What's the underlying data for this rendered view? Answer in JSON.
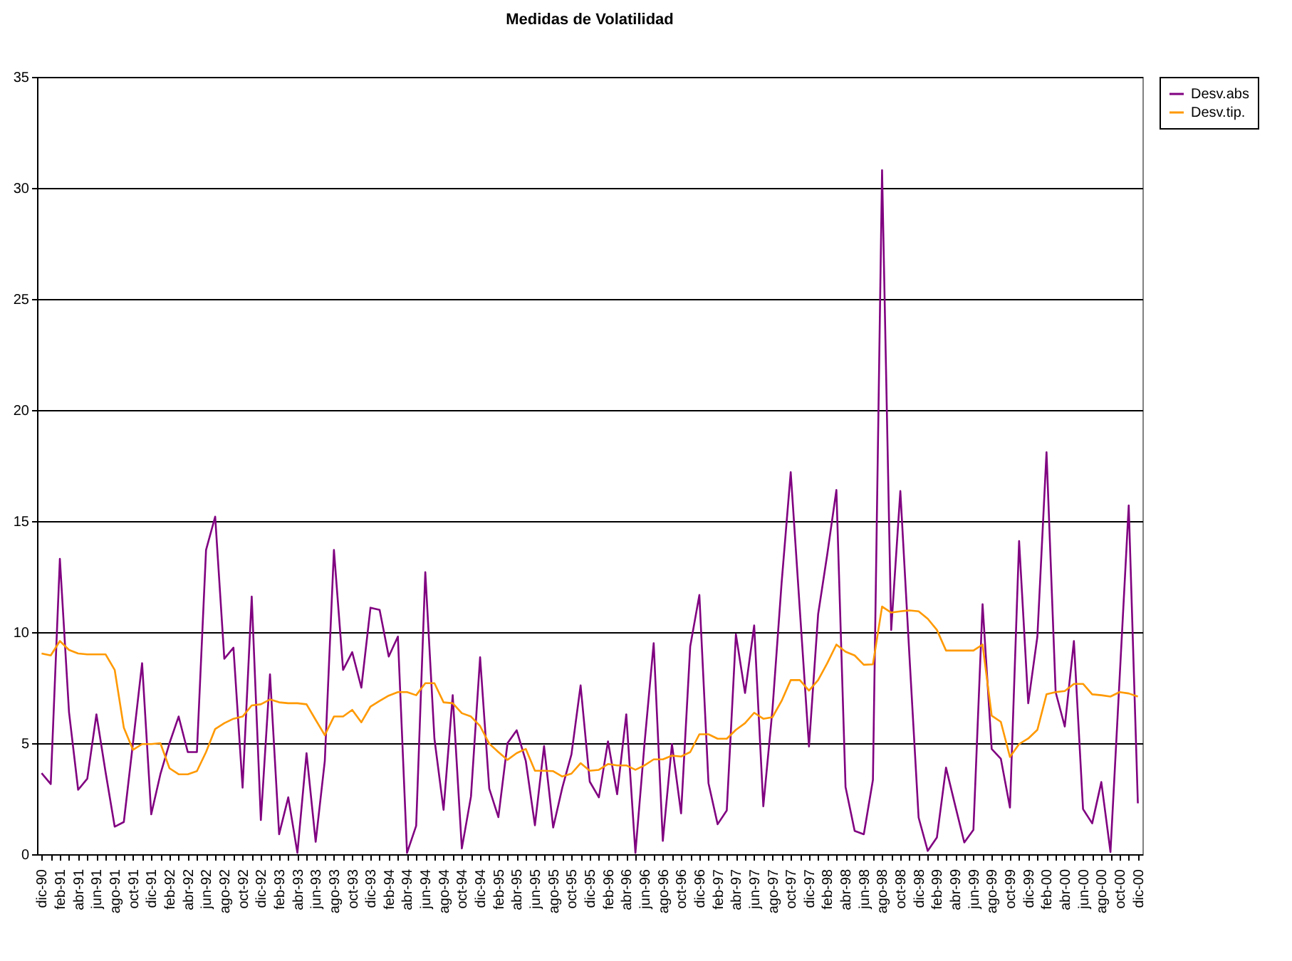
{
  "chart_data": {
    "type": "line",
    "title": "Medidas de Volatilidad",
    "categories": [
      "dic-90",
      null,
      "feb-91",
      null,
      "abr-91",
      null,
      "jun-91",
      null,
      "ago-91",
      null,
      "oct-91",
      null,
      "dic-91",
      null,
      "feb-92",
      null,
      "abr-92",
      null,
      "jun-92",
      null,
      "ago-92",
      null,
      "oct-92",
      null,
      "dic-92",
      null,
      "feb-93",
      null,
      "abr-93",
      null,
      "jun-93",
      null,
      "ago-93",
      null,
      "oct-93",
      null,
      "dic-93",
      null,
      "feb-94",
      null,
      "abr-94",
      null,
      "jun-94",
      null,
      "ago-94",
      null,
      "oct-94",
      null,
      "dic-94",
      null,
      "feb-95",
      null,
      "abr-95",
      null,
      "jun-95",
      null,
      "ago-95",
      null,
      "oct-95",
      null,
      "dic-95",
      null,
      "feb-96",
      null,
      "abr-96",
      null,
      "jun-96",
      null,
      "ago-96",
      null,
      "oct-96",
      null,
      "dic-96",
      null,
      "feb-97",
      null,
      "abr-97",
      null,
      "jun-97",
      null,
      "ago-97",
      null,
      "oct-97",
      null,
      "dic-97",
      null,
      "feb-98",
      null,
      "abr-98",
      null,
      "jun-98",
      null,
      "ago-98",
      null,
      "oct-98",
      null,
      "dic-98",
      null,
      "feb-99",
      null,
      "abr-99",
      null,
      "jun-99",
      null,
      "ago-99",
      null,
      "oct-99",
      null,
      "dic-99",
      null,
      "feb-00",
      null,
      "abr-00",
      null,
      "jun-00",
      null,
      "ago-00",
      null,
      "oct-00",
      null,
      "dic-00"
    ],
    "series": [
      {
        "name": "Desv.abs",
        "color": "#800080",
        "values": [
          3.65,
          3.16,
          13.3,
          6.4,
          2.9,
          3.4,
          6.3,
          3.7,
          1.24,
          1.45,
          5.0,
          8.6,
          1.8,
          3.6,
          5.0,
          6.2,
          4.6,
          4.6,
          13.7,
          15.2,
          8.8,
          9.3,
          3.0,
          11.6,
          1.54,
          8.1,
          0.9,
          2.56,
          0.06,
          4.55,
          0.56,
          4.2,
          13.7,
          8.3,
          9.1,
          7.5,
          11.1,
          11.0,
          8.9,
          9.8,
          0.06,
          1.28,
          12.7,
          5.2,
          2.0,
          7.16,
          0.26,
          2.6,
          8.87,
          2.95,
          1.67,
          5.0,
          5.58,
          4.2,
          1.3,
          4.87,
          1.2,
          3.0,
          4.5,
          7.6,
          3.27,
          2.56,
          5.08,
          2.7,
          6.3,
          0.06,
          5.0,
          9.5,
          0.6,
          4.96,
          1.84,
          9.36,
          11.67,
          3.2,
          1.35,
          1.97,
          9.9,
          7.26,
          10.3,
          2.16,
          6.5,
          12.2,
          17.2,
          11.0,
          4.85,
          10.8,
          13.5,
          16.4,
          3.03,
          1.05,
          0.9,
          3.35,
          30.8,
          10.1,
          16.35,
          8.9,
          1.65,
          0.15,
          0.75,
          3.9,
          2.2,
          0.53,
          1.1,
          11.26,
          4.74,
          4.3,
          2.1,
          14.1,
          6.8,
          9.8,
          18.1,
          7.3,
          5.75,
          9.6,
          2.03,
          1.39,
          3.25,
          0.1,
          7.9,
          15.7,
          2.29
        ]
      },
      {
        "name": "Desv.tip.",
        "color": "#ff9900",
        "values": [
          9.04,
          8.95,
          9.6,
          9.2,
          9.04,
          9.0,
          9.0,
          9.0,
          8.3,
          5.7,
          4.7,
          4.96,
          4.96,
          5.0,
          3.87,
          3.6,
          3.6,
          3.74,
          4.6,
          5.64,
          5.9,
          6.1,
          6.2,
          6.7,
          6.75,
          6.97,
          6.84,
          6.8,
          6.8,
          6.75,
          6.05,
          5.36,
          6.2,
          6.2,
          6.5,
          5.94,
          6.65,
          6.9,
          7.14,
          7.3,
          7.3,
          7.16,
          7.7,
          7.7,
          6.84,
          6.8,
          6.35,
          6.2,
          5.77,
          4.98,
          4.6,
          4.25,
          4.55,
          4.74,
          3.76,
          3.76,
          3.74,
          3.5,
          3.63,
          4.1,
          3.76,
          3.8,
          4.06,
          4.0,
          4.0,
          3.8,
          4.0,
          4.27,
          4.27,
          4.44,
          4.4,
          4.6,
          5.4,
          5.4,
          5.2,
          5.2,
          5.6,
          5.9,
          6.37,
          6.1,
          6.17,
          6.9,
          7.84,
          7.84,
          7.37,
          7.84,
          8.6,
          9.44,
          9.12,
          8.95,
          8.53,
          8.55,
          11.15,
          10.88,
          10.94,
          10.98,
          10.94,
          10.6,
          10.1,
          9.17,
          9.17,
          9.17,
          9.17,
          9.44,
          6.24,
          5.96,
          4.38,
          4.96,
          5.21,
          5.6,
          7.2,
          7.3,
          7.35,
          7.67,
          7.67,
          7.2,
          7.16,
          7.1,
          7.3,
          7.24,
          7.1
        ]
      }
    ],
    "ylim": [
      0,
      35
    ],
    "yticks": [
      0,
      5,
      10,
      15,
      20,
      25,
      30,
      35
    ],
    "grid": "y",
    "legend": "right",
    "marker": "none",
    "line_style": "solid"
  }
}
